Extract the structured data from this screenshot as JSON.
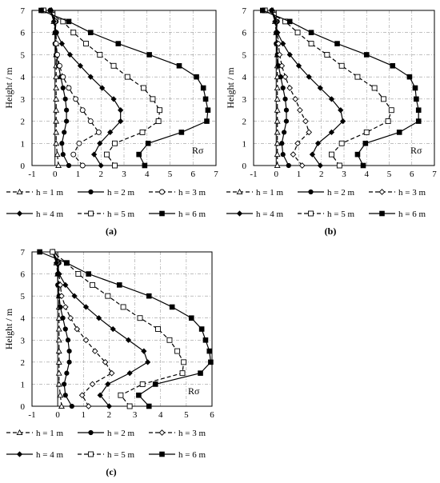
{
  "chart_data": [
    {
      "panel": "(a)",
      "type": "line",
      "annotation": "Rσ",
      "ylabel": "Height / m",
      "xlim": [
        -1,
        7
      ],
      "ylim": [
        0,
        7
      ],
      "x_ticks": [
        -1,
        0,
        1,
        2,
        3,
        4,
        5,
        6,
        7
      ],
      "y_ticks": [
        0,
        1,
        2,
        3,
        4,
        5,
        6,
        7
      ],
      "grid": true,
      "legend_position": "bottom",
      "series": [
        {
          "name": "h = 1 m",
          "y": [
            0,
            0.5,
            1,
            1.5,
            2,
            2.5,
            3,
            3.5,
            4,
            4.5,
            5,
            5.5,
            6,
            6.5,
            7
          ],
          "x": [
            0.15,
            0.1,
            0.05,
            0.05,
            0.05,
            0.05,
            0.05,
            0.05,
            0.05,
            0.05,
            0.05,
            0.05,
            0.0,
            -0.05,
            -0.15
          ]
        },
        {
          "name": "h = 2 m",
          "y": [
            0,
            0.5,
            1,
            1.5,
            2,
            2.5,
            3,
            3.5,
            4,
            4.5,
            5,
            5.5,
            6,
            6.5,
            7
          ],
          "x": [
            0.6,
            0.35,
            0.3,
            0.4,
            0.5,
            0.5,
            0.45,
            0.35,
            0.25,
            0.15,
            0.05,
            0.0,
            0.0,
            0.05,
            -0.2
          ]
        },
        {
          "name": "h = 3 m",
          "y": [
            0,
            0.5,
            1,
            1.5,
            2,
            2.5,
            3,
            3.5,
            4,
            4.5,
            5,
            5.5,
            6,
            6.5,
            7
          ],
          "x": [
            1.2,
            0.8,
            1.05,
            1.9,
            1.55,
            1.2,
            0.9,
            0.6,
            0.35,
            0.2,
            0.1,
            0.05,
            0.05,
            0.0,
            -0.2
          ]
        },
        {
          "name": "h = 4 m",
          "y": [
            0,
            0.5,
            1,
            1.5,
            2,
            2.5,
            3,
            3.5,
            4,
            4.5,
            5,
            5.5,
            6,
            6.5,
            7
          ],
          "x": [
            2.0,
            1.7,
            1.95,
            2.4,
            2.85,
            2.85,
            2.55,
            2.05,
            1.55,
            1.1,
            0.65,
            0.3,
            0.05,
            -0.05,
            -0.2
          ]
        },
        {
          "name": "h = 5 m",
          "y": [
            0,
            0.5,
            1,
            1.5,
            2,
            2.5,
            3,
            3.5,
            4,
            4.5,
            5,
            5.5,
            6,
            6.5,
            7
          ],
          "x": [
            2.6,
            2.25,
            2.6,
            3.8,
            4.5,
            4.55,
            4.25,
            3.85,
            3.15,
            2.55,
            1.95,
            1.35,
            0.8,
            0.35,
            -0.5
          ]
        },
        {
          "name": "h = 6 m",
          "y": [
            0,
            0.5,
            1,
            1.5,
            2,
            2.5,
            3,
            3.5,
            4,
            4.5,
            5,
            5.5,
            6,
            6.5,
            7
          ],
          "x": [
            3.9,
            3.65,
            4.05,
            5.5,
            6.6,
            6.65,
            6.55,
            6.45,
            6.15,
            5.4,
            4.1,
            2.75,
            1.55,
            0.6,
            -0.6
          ]
        }
      ]
    },
    {
      "panel": "(b)",
      "type": "line",
      "annotation": "Rσ",
      "ylabel": "Height / m",
      "xlim": [
        -1,
        7
      ],
      "ylim": [
        0,
        7
      ],
      "x_ticks": [
        -1,
        0,
        1,
        2,
        3,
        4,
        5,
        6,
        7
      ],
      "y_ticks": [
        0,
        1,
        2,
        3,
        4,
        5,
        6,
        7
      ],
      "grid": true,
      "legend_position": "bottom",
      "series": [
        {
          "name": "h = 1 m",
          "y": [
            0,
            0.5,
            1,
            1.5,
            2,
            2.5,
            3,
            3.5,
            4,
            4.5,
            5,
            5.5,
            6,
            6.5,
            7
          ],
          "x": [
            0.05,
            0.05,
            0.05,
            0.05,
            0.05,
            0.05,
            0.05,
            0.05,
            0.05,
            0.05,
            0.05,
            0.05,
            0.0,
            -0.05,
            -0.15
          ]
        },
        {
          "name": "h = 2 m",
          "y": [
            0,
            0.5,
            1,
            1.5,
            2,
            2.5,
            3,
            3.5,
            4,
            4.5,
            5,
            5.5,
            6,
            6.5,
            7
          ],
          "x": [
            0.55,
            0.3,
            0.25,
            0.35,
            0.45,
            0.45,
            0.4,
            0.3,
            0.2,
            0.1,
            0.05,
            0.0,
            0.0,
            0.05,
            -0.2
          ]
        },
        {
          "name": "h = 3 m",
          "y": [
            0,
            0.5,
            1,
            1.5,
            2,
            2.5,
            3,
            3.5,
            4,
            4.5,
            5,
            5.5,
            6,
            6.5,
            7
          ],
          "x": [
            1.15,
            0.75,
            0.95,
            1.45,
            1.3,
            1.05,
            0.85,
            0.6,
            0.4,
            0.25,
            0.15,
            0.1,
            0.05,
            0.0,
            -0.2
          ]
        },
        {
          "name": "h = 4 m",
          "y": [
            0,
            0.5,
            1,
            1.5,
            2,
            2.5,
            3,
            3.5,
            4,
            4.5,
            5,
            5.5,
            6,
            6.5,
            7
          ],
          "x": [
            1.95,
            1.6,
            1.85,
            2.45,
            2.95,
            2.85,
            2.45,
            1.95,
            1.45,
            1.0,
            0.6,
            0.3,
            0.05,
            -0.05,
            -0.2
          ]
        },
        {
          "name": "h = 5 m",
          "y": [
            0,
            0.5,
            1,
            1.5,
            2,
            2.5,
            3,
            3.5,
            4,
            4.5,
            5,
            5.5,
            6,
            6.5,
            7
          ],
          "x": [
            2.8,
            2.45,
            2.9,
            4.0,
            4.95,
            5.1,
            4.75,
            4.35,
            3.6,
            2.9,
            2.25,
            1.55,
            0.95,
            0.4,
            -0.5
          ]
        },
        {
          "name": "h = 6 m",
          "y": [
            0,
            0.5,
            1,
            1.5,
            2,
            2.5,
            3,
            3.5,
            4,
            4.5,
            5,
            5.5,
            6,
            6.5,
            7
          ],
          "x": [
            3.85,
            3.6,
            3.95,
            5.45,
            6.3,
            6.3,
            6.2,
            6.15,
            5.9,
            5.15,
            4.0,
            2.7,
            1.55,
            0.6,
            -0.6
          ]
        }
      ]
    },
    {
      "panel": "(c)",
      "type": "line",
      "annotation": "Rσ",
      "ylabel": "Height / m",
      "xlim": [
        -1,
        6
      ],
      "ylim": [
        0,
        7
      ],
      "x_ticks": [
        -1,
        0,
        1,
        2,
        3,
        4,
        5,
        6
      ],
      "y_ticks": [
        0,
        1,
        2,
        3,
        4,
        5,
        6,
        7
      ],
      "grid": true,
      "legend_position": "bottom",
      "series": [
        {
          "name": "h = 1 m",
          "y": [
            0,
            0.5,
            1,
            1.5,
            2,
            2.5,
            3,
            3.5,
            4,
            4.5,
            5,
            5.5,
            6,
            6.5,
            7
          ],
          "x": [
            0.15,
            0.1,
            0.05,
            0.05,
            0.05,
            0.05,
            0.05,
            0.05,
            0.05,
            0.05,
            0.05,
            0.05,
            0.0,
            -0.05,
            -0.15
          ]
        },
        {
          "name": "h = 2 m",
          "y": [
            0,
            0.5,
            1,
            1.5,
            2,
            2.5,
            3,
            3.5,
            4,
            4.5,
            5,
            5.5,
            6,
            6.5,
            7
          ],
          "x": [
            0.55,
            0.3,
            0.25,
            0.35,
            0.45,
            0.45,
            0.4,
            0.3,
            0.2,
            0.1,
            0.05,
            0.0,
            0.0,
            0.05,
            -0.2
          ]
        },
        {
          "name": "h = 3 m",
          "y": [
            0,
            0.5,
            1,
            1.5,
            2,
            2.5,
            3,
            3.5,
            4,
            4.5,
            5,
            5.5,
            6,
            6.5,
            7
          ],
          "x": [
            1.2,
            0.95,
            1.35,
            2.1,
            1.85,
            1.45,
            1.1,
            0.75,
            0.5,
            0.3,
            0.15,
            0.1,
            0.05,
            0.0,
            -0.2
          ]
        },
        {
          "name": "h = 4 m",
          "y": [
            0,
            0.5,
            1,
            1.5,
            2,
            2.5,
            3,
            3.5,
            4,
            4.5,
            5,
            5.5,
            6,
            6.5,
            7
          ],
          "x": [
            2.0,
            1.65,
            1.95,
            2.8,
            3.5,
            3.35,
            2.75,
            2.15,
            1.6,
            1.1,
            0.65,
            0.3,
            0.05,
            -0.05,
            -0.2
          ]
        },
        {
          "name": "h = 5 m",
          "y": [
            0,
            0.5,
            1,
            1.5,
            2,
            2.5,
            3,
            3.5,
            4,
            4.5,
            5,
            5.5,
            6,
            6.5,
            7
          ],
          "x": [
            2.8,
            2.45,
            3.3,
            4.85,
            4.9,
            4.65,
            4.35,
            3.9,
            3.2,
            2.55,
            1.95,
            1.35,
            0.8,
            0.35,
            -0.2
          ]
        },
        {
          "name": "h = 6 m",
          "y": [
            0,
            0.5,
            1,
            1.5,
            2,
            2.5,
            3,
            3.5,
            4,
            4.5,
            5,
            5.5,
            6,
            6.5,
            7
          ],
          "x": [
            3.55,
            3.15,
            3.8,
            5.55,
            5.95,
            5.9,
            5.75,
            5.6,
            5.2,
            4.45,
            3.55,
            2.4,
            1.2,
            0.35,
            -0.7
          ]
        }
      ]
    }
  ]
}
